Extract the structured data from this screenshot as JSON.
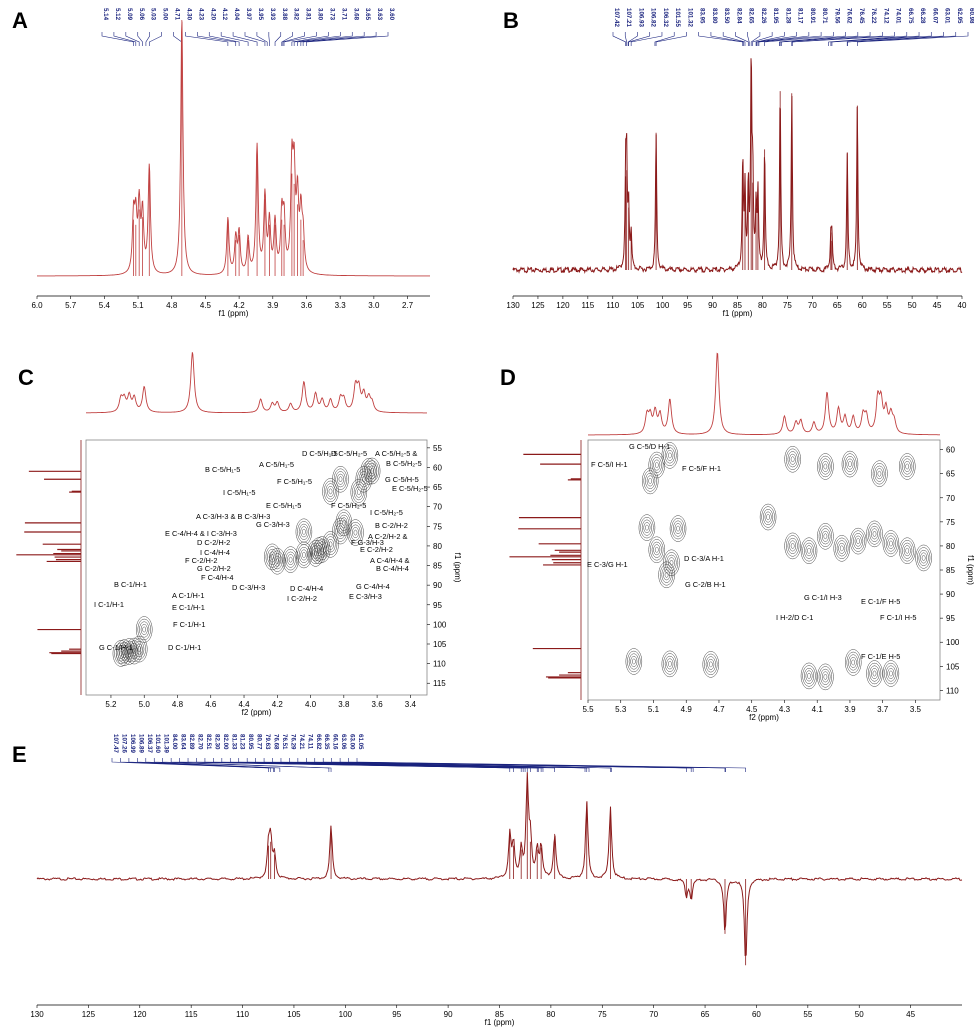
{
  "colors": {
    "trace": "#8b1a1a",
    "trace_light": "#c04040",
    "peak_label": "#1a237e",
    "contour": "#444444",
    "frame": "#888888"
  },
  "chart_data": [
    {
      "id": "A",
      "type": "line",
      "letter": "A",
      "xlabel": "f1 (ppm)",
      "xlim": [
        6.0,
        2.5
      ],
      "reverse_x": true,
      "ticks": [
        "6.0",
        "5.7",
        "5.4",
        "5.1",
        "4.8",
        "4.5",
        "4.2",
        "3.9",
        "3.6",
        "3.3",
        "3.0",
        "2.7"
      ],
      "peak_labels": [
        "5.14",
        "5.12",
        "5.09",
        "5.06",
        "5.03",
        "5.00",
        "4.71",
        "4.30",
        "4.23",
        "4.20",
        "4.12",
        "4.04",
        "3.97",
        "3.95",
        "3.93",
        "3.88",
        "3.82",
        "3.81",
        "3.80",
        "3.73",
        "3.71",
        "3.68",
        "3.65",
        "3.63",
        "3.60"
      ],
      "peaks": [
        {
          "ppm": 5.14,
          "h": 0.22
        },
        {
          "ppm": 5.12,
          "h": 0.2
        },
        {
          "ppm": 5.09,
          "h": 0.26
        },
        {
          "ppm": 5.06,
          "h": 0.23
        },
        {
          "ppm": 5.0,
          "h": 0.42
        },
        {
          "ppm": 4.71,
          "h": 1.0
        },
        {
          "ppm": 4.3,
          "h": 0.22
        },
        {
          "ppm": 4.23,
          "h": 0.14
        },
        {
          "ppm": 4.2,
          "h": 0.16
        },
        {
          "ppm": 4.12,
          "h": 0.14
        },
        {
          "ppm": 4.04,
          "h": 0.5
        },
        {
          "ppm": 3.97,
          "h": 0.3
        },
        {
          "ppm": 3.93,
          "h": 0.2
        },
        {
          "ppm": 3.88,
          "h": 0.2
        },
        {
          "ppm": 3.82,
          "h": 0.22
        },
        {
          "ppm": 3.8,
          "h": 0.2
        },
        {
          "ppm": 3.73,
          "h": 0.4
        },
        {
          "ppm": 3.71,
          "h": 0.36
        },
        {
          "ppm": 3.68,
          "h": 0.28
        },
        {
          "ppm": 3.65,
          "h": 0.22
        },
        {
          "ppm": 3.63,
          "h": 0.14
        }
      ]
    },
    {
      "id": "B",
      "type": "line",
      "letter": "B",
      "xlabel": "f1 (ppm)",
      "xlim": [
        130,
        40
      ],
      "reverse_x": true,
      "ticks": [
        "130",
        "125",
        "120",
        "115",
        "110",
        "105",
        "100",
        "95",
        "90",
        "85",
        "80",
        "75",
        "70",
        "65",
        "60",
        "55",
        "50",
        "45",
        "40"
      ],
      "peak_labels": [
        "107.42",
        "107.21",
        "106.93",
        "106.82",
        "106.32",
        "101.55",
        "101.32",
        "83.95",
        "83.80",
        "83.50",
        "82.84",
        "82.65",
        "82.26",
        "81.95",
        "81.28",
        "81.17",
        "80.91",
        "80.71",
        "79.56",
        "76.62",
        "76.45",
        "76.22",
        "74.12",
        "74.01",
        "66.75",
        "66.28",
        "66.07",
        "63.01",
        "62.95",
        "60.98"
      ],
      "peaks": [
        {
          "ppm": 107.42,
          "h": 0.45
        },
        {
          "ppm": 107.21,
          "h": 0.48
        },
        {
          "ppm": 106.82,
          "h": 0.3
        },
        {
          "ppm": 106.32,
          "h": 0.18
        },
        {
          "ppm": 101.32,
          "h": 0.66
        },
        {
          "ppm": 83.95,
          "h": 0.52
        },
        {
          "ppm": 83.5,
          "h": 0.38
        },
        {
          "ppm": 82.84,
          "h": 0.4
        },
        {
          "ppm": 82.26,
          "h": 0.98
        },
        {
          "ppm": 81.95,
          "h": 0.42
        },
        {
          "ppm": 81.28,
          "h": 0.3
        },
        {
          "ppm": 80.91,
          "h": 0.36
        },
        {
          "ppm": 79.56,
          "h": 0.58
        },
        {
          "ppm": 76.45,
          "h": 0.86
        },
        {
          "ppm": 74.12,
          "h": 0.85
        },
        {
          "ppm": 66.28,
          "h": 0.18
        },
        {
          "ppm": 66.07,
          "h": 0.14
        },
        {
          "ppm": 63.01,
          "h": 0.56
        },
        {
          "ppm": 60.98,
          "h": 0.79
        }
      ]
    },
    {
      "id": "C",
      "type": "heatmap",
      "letter": "C",
      "xlabel": "f2 (ppm)",
      "ylabel": "f1 (ppm)",
      "xlim": [
        5.35,
        3.3
      ],
      "ylim": [
        53,
        118
      ],
      "xticks": [
        "5.2",
        "5.0",
        "4.8",
        "4.6",
        "4.4",
        "4.2",
        "4.0",
        "3.8",
        "3.6",
        "3.4"
      ],
      "yticks": [
        "55",
        "60",
        "65",
        "70",
        "75",
        "80",
        "85",
        "90",
        "95",
        "100",
        "105",
        "110",
        "115"
      ],
      "annotations": [
        "D C-5/H₁-5",
        "D C-5/H₂-5",
        "A C-5/H₂-5 &",
        "B C-5/H₂-5",
        "A C-5/H₁-5",
        "B C-5/H₁-5",
        "G C-5/H-5",
        "F C-5/H₁-5",
        "E C-5/H₂-5",
        "I C-5/H₁-5",
        "E C-5/H₁-5",
        "F C-5/H₂-5",
        "I C-5/H₂-5",
        "A C-3/H-3 & B C-3/H-3",
        "G C-3/H-3",
        "B C-2/H-2",
        "E C-4/H-4 & I C-3/H-3",
        "A C-2/H-2 &",
        "D C-2/H-2",
        "F G-3/H-3",
        "I C-4/H-4",
        "E C-2/H-2",
        "F C-2/H-2",
        "A C-4/H-4 &",
        "G C-2/H-2",
        "B C-4/H-4",
        "F C-4/H-4",
        "D C-4/H-4",
        "G C-4/H-4",
        "D C-3/H-3",
        "I C-2/H-2",
        "E C-3/H-3",
        "B C-1/H-1",
        "A C-1/H-1",
        "I C-1/H-1",
        "E C-1/H-1",
        "F C-1/H-1",
        "G C-1/H-1",
        "D C-1/H-1"
      ],
      "cross_peaks": [
        {
          "x": 5.14,
          "y": 107.4
        },
        {
          "x": 5.12,
          "y": 107.2
        },
        {
          "x": 5.09,
          "y": 106.9
        },
        {
          "x": 5.06,
          "y": 106.8
        },
        {
          "x": 5.03,
          "y": 106.3
        },
        {
          "x": 5.0,
          "y": 101.3
        },
        {
          "x": 4.23,
          "y": 82.8
        },
        {
          "x": 4.2,
          "y": 83.9
        },
        {
          "x": 4.12,
          "y": 83.5
        },
        {
          "x": 4.04,
          "y": 82.3
        },
        {
          "x": 4.04,
          "y": 76.4
        },
        {
          "x": 3.97,
          "y": 81.9
        },
        {
          "x": 3.95,
          "y": 81.2
        },
        {
          "x": 3.93,
          "y": 80.9
        },
        {
          "x": 3.88,
          "y": 79.6
        },
        {
          "x": 3.82,
          "y": 76.2
        },
        {
          "x": 3.8,
          "y": 74.1
        },
        {
          "x": 3.73,
          "y": 76.6
        },
        {
          "x": 3.71,
          "y": 66.3
        },
        {
          "x": 3.68,
          "y": 63.0
        },
        {
          "x": 3.65,
          "y": 61.0
        },
        {
          "x": 3.63,
          "y": 60.9
        },
        {
          "x": 3.88,
          "y": 66.1
        },
        {
          "x": 3.82,
          "y": 63.0
        }
      ]
    },
    {
      "id": "D",
      "type": "heatmap",
      "letter": "D",
      "xlabel": "f2 (ppm)",
      "ylabel": "f1 (ppm)",
      "xlim": [
        5.5,
        3.35
      ],
      "ylim": [
        58,
        112
      ],
      "xticks": [
        "5.5",
        "5.3",
        "5.1",
        "4.9",
        "4.7",
        "4.5",
        "4.3",
        "4.1",
        "3.9",
        "3.7",
        "3.5"
      ],
      "yticks": [
        "60",
        "65",
        "70",
        "75",
        "80",
        "85",
        "90",
        "95",
        "100",
        "105",
        "110"
      ],
      "annotations": [
        "G C-5/D H-1",
        "F C-5/I H-1",
        "F C-5/F H-1",
        "E C-3/G H-1",
        "D C-3/A H-1",
        "G C-2/B H-1",
        "G C-1/I H-3",
        "E C-1/F H-5",
        "I H-2/D C-1",
        "F C-1/I H-5",
        "F C-1/E H-5"
      ],
      "cross_peaks": [
        {
          "x": 5.08,
          "y": 63.2
        },
        {
          "x": 5.0,
          "y": 61.2
        },
        {
          "x": 5.12,
          "y": 66.5
        },
        {
          "x": 5.08,
          "y": 80.8
        },
        {
          "x": 4.99,
          "y": 83.5
        },
        {
          "x": 5.02,
          "y": 86.0
        },
        {
          "x": 4.95,
          "y": 76.4
        },
        {
          "x": 5.14,
          "y": 76.2
        },
        {
          "x": 5.22,
          "y": 104.0
        },
        {
          "x": 5.0,
          "y": 104.5
        },
        {
          "x": 4.75,
          "y": 104.6
        },
        {
          "x": 4.15,
          "y": 107.0
        },
        {
          "x": 4.05,
          "y": 107.2
        },
        {
          "x": 3.88,
          "y": 104.2
        },
        {
          "x": 3.75,
          "y": 106.5
        },
        {
          "x": 3.65,
          "y": 106.5
        },
        {
          "x": 4.25,
          "y": 62.0
        },
        {
          "x": 4.05,
          "y": 63.5
        },
        {
          "x": 3.9,
          "y": 63.0
        },
        {
          "x": 3.72,
          "y": 65.0
        },
        {
          "x": 3.55,
          "y": 63.5
        },
        {
          "x": 4.25,
          "y": 80.0
        },
        {
          "x": 4.15,
          "y": 81.0
        },
        {
          "x": 4.05,
          "y": 78.0
        },
        {
          "x": 3.95,
          "y": 80.5
        },
        {
          "x": 3.85,
          "y": 79.0
        },
        {
          "x": 3.75,
          "y": 77.5
        },
        {
          "x": 3.65,
          "y": 79.5
        },
        {
          "x": 3.55,
          "y": 81.0
        },
        {
          "x": 4.4,
          "y": 74.0
        },
        {
          "x": 3.45,
          "y": 82.5
        }
      ]
    },
    {
      "id": "E",
      "type": "line",
      "letter": "E",
      "xlabel": "f1 (ppm)",
      "xlim": [
        130,
        40
      ],
      "reverse_x": true,
      "ticks": [
        "130",
        "125",
        "120",
        "115",
        "110",
        "105",
        "100",
        "95",
        "90",
        "85",
        "80",
        "75",
        "70",
        "65",
        "60",
        "55",
        "50",
        "45"
      ],
      "peak_labels": [
        "107.47",
        "107.26",
        "106.99",
        "106.89",
        "106.37",
        "101.60",
        "101.39",
        "84.00",
        "83.64",
        "82.89",
        "82.70",
        "82.51",
        "82.30",
        "82.00",
        "81.33",
        "81.23",
        "80.95",
        "80.77",
        "79.63",
        "76.68",
        "76.51",
        "76.29",
        "74.21",
        "74.11",
        "66.82",
        "66.35",
        "66.16",
        "63.06",
        "63.00",
        "61.05"
      ],
      "peaks": [
        {
          "ppm": 107.47,
          "h": 0.34
        },
        {
          "ppm": 107.26,
          "h": 0.38
        },
        {
          "ppm": 106.89,
          "h": 0.25
        },
        {
          "ppm": 101.39,
          "h": 0.54
        },
        {
          "ppm": 84.0,
          "h": 0.46
        },
        {
          "ppm": 83.64,
          "h": 0.34
        },
        {
          "ppm": 82.89,
          "h": 0.3
        },
        {
          "ppm": 82.3,
          "h": 0.98
        },
        {
          "ppm": 82.0,
          "h": 0.38
        },
        {
          "ppm": 81.33,
          "h": 0.3
        },
        {
          "ppm": 80.95,
          "h": 0.32
        },
        {
          "ppm": 79.63,
          "h": 0.46
        },
        {
          "ppm": 76.51,
          "h": 0.78
        },
        {
          "ppm": 74.21,
          "h": 0.74
        },
        {
          "ppm": 66.82,
          "h": -0.18
        },
        {
          "ppm": 66.35,
          "h": -0.2
        },
        {
          "ppm": 63.06,
          "h": -0.56
        },
        {
          "ppm": 61.05,
          "h": -0.88
        }
      ]
    }
  ]
}
